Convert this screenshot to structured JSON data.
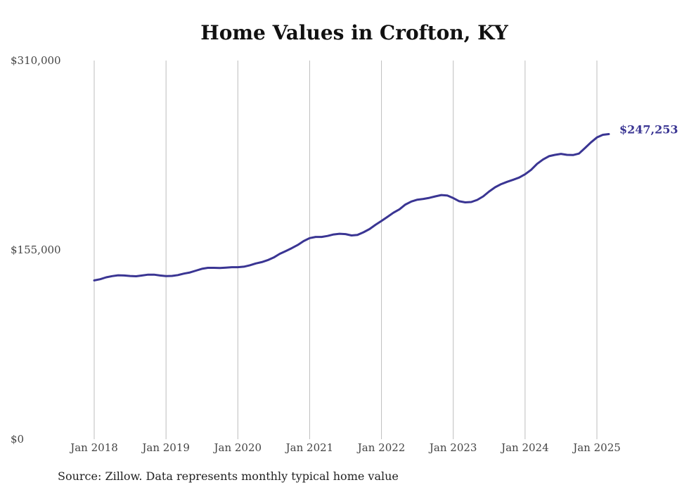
{
  "chart_data": {
    "type": "line",
    "title": "Home Values in Crofton, KY",
    "xlabel": "",
    "ylabel": "",
    "ylim": [
      0,
      310000
    ],
    "y_ticks": [
      {
        "value": 0,
        "label": "$0"
      },
      {
        "value": 155000,
        "label": "$155,000"
      },
      {
        "value": 310000,
        "label": "$310,000"
      }
    ],
    "x_ticks": [
      {
        "value": "2018-01",
        "label": "Jan 2018"
      },
      {
        "value": "2019-01",
        "label": "Jan 2019"
      },
      {
        "value": "2020-01",
        "label": "Jan 2020"
      },
      {
        "value": "2021-01",
        "label": "Jan 2021"
      },
      {
        "value": "2022-01",
        "label": "Jan 2022"
      },
      {
        "value": "2023-01",
        "label": "Jan 2023"
      },
      {
        "value": "2024-01",
        "label": "Jan 2024"
      },
      {
        "value": "2025-01",
        "label": "Jan 2025"
      }
    ],
    "grid": {
      "vertical": true,
      "horizontal": false
    },
    "series": [
      {
        "color": "#3a3593",
        "points": [
          [
            "2018-01",
            130000
          ],
          [
            "2018-02",
            131000
          ],
          [
            "2018-03",
            132500
          ],
          [
            "2018-04",
            133500
          ],
          [
            "2018-05",
            134200
          ],
          [
            "2018-06",
            134000
          ],
          [
            "2018-07",
            133600
          ],
          [
            "2018-08",
            133400
          ],
          [
            "2018-09",
            134000
          ],
          [
            "2018-10",
            134700
          ],
          [
            "2018-11",
            134700
          ],
          [
            "2018-12",
            134000
          ],
          [
            "2019-01",
            133500
          ],
          [
            "2019-02",
            133700
          ],
          [
            "2019-03",
            134400
          ],
          [
            "2019-04",
            135600
          ],
          [
            "2019-05",
            136500
          ],
          [
            "2019-06",
            138000
          ],
          [
            "2019-07",
            139500
          ],
          [
            "2019-08",
            140300
          ],
          [
            "2019-09",
            140300
          ],
          [
            "2019-10",
            140200
          ],
          [
            "2019-11",
            140500
          ],
          [
            "2019-12",
            140800
          ],
          [
            "2020-01",
            140800
          ],
          [
            "2020-02",
            141200
          ],
          [
            "2020-03",
            142400
          ],
          [
            "2020-04",
            143900
          ],
          [
            "2020-05",
            145000
          ],
          [
            "2020-06",
            146600
          ],
          [
            "2020-07",
            148800
          ],
          [
            "2020-08",
            151800
          ],
          [
            "2020-09",
            154000
          ],
          [
            "2020-10",
            156400
          ],
          [
            "2020-11",
            159000
          ],
          [
            "2020-12",
            162200
          ],
          [
            "2021-01",
            164600
          ],
          [
            "2021-02",
            165600
          ],
          [
            "2021-03",
            165600
          ],
          [
            "2021-04",
            166400
          ],
          [
            "2021-05",
            167600
          ],
          [
            "2021-06",
            168200
          ],
          [
            "2021-07",
            167900
          ],
          [
            "2021-08",
            166800
          ],
          [
            "2021-09",
            167300
          ],
          [
            "2021-10",
            169400
          ],
          [
            "2021-11",
            172000
          ],
          [
            "2021-12",
            175500
          ],
          [
            "2022-01",
            178700
          ],
          [
            "2022-02",
            182000
          ],
          [
            "2022-03",
            185400
          ],
          [
            "2022-04",
            188200
          ],
          [
            "2022-05",
            192100
          ],
          [
            "2022-06",
            194600
          ],
          [
            "2022-07",
            196100
          ],
          [
            "2022-08",
            196700
          ],
          [
            "2022-09",
            197600
          ],
          [
            "2022-10",
            198800
          ],
          [
            "2022-11",
            199900
          ],
          [
            "2022-12",
            199500
          ],
          [
            "2023-01",
            197400
          ],
          [
            "2023-02",
            194800
          ],
          [
            "2023-03",
            193900
          ],
          [
            "2023-04",
            194200
          ],
          [
            "2023-05",
            195900
          ],
          [
            "2023-06",
            198800
          ],
          [
            "2023-07",
            202800
          ],
          [
            "2023-08",
            206300
          ],
          [
            "2023-09",
            208800
          ],
          [
            "2023-10",
            210700
          ],
          [
            "2023-11",
            212400
          ],
          [
            "2023-12",
            214200
          ],
          [
            "2024-01",
            216900
          ],
          [
            "2024-02",
            220500
          ],
          [
            "2024-03",
            225400
          ],
          [
            "2024-04",
            229000
          ],
          [
            "2024-05",
            231700
          ],
          [
            "2024-06",
            232800
          ],
          [
            "2024-07",
            233600
          ],
          [
            "2024-08",
            232800
          ],
          [
            "2024-09",
            232600
          ],
          [
            "2024-10",
            233800
          ],
          [
            "2024-11",
            238300
          ],
          [
            "2024-12",
            243000
          ],
          [
            "2025-01",
            247000
          ],
          [
            "2025-02",
            249200
          ],
          [
            "2025-03",
            249800
          ]
        ],
        "end_label": "$247,253"
      }
    ],
    "source": "Source: Zillow. Data represents monthly typical home value"
  }
}
